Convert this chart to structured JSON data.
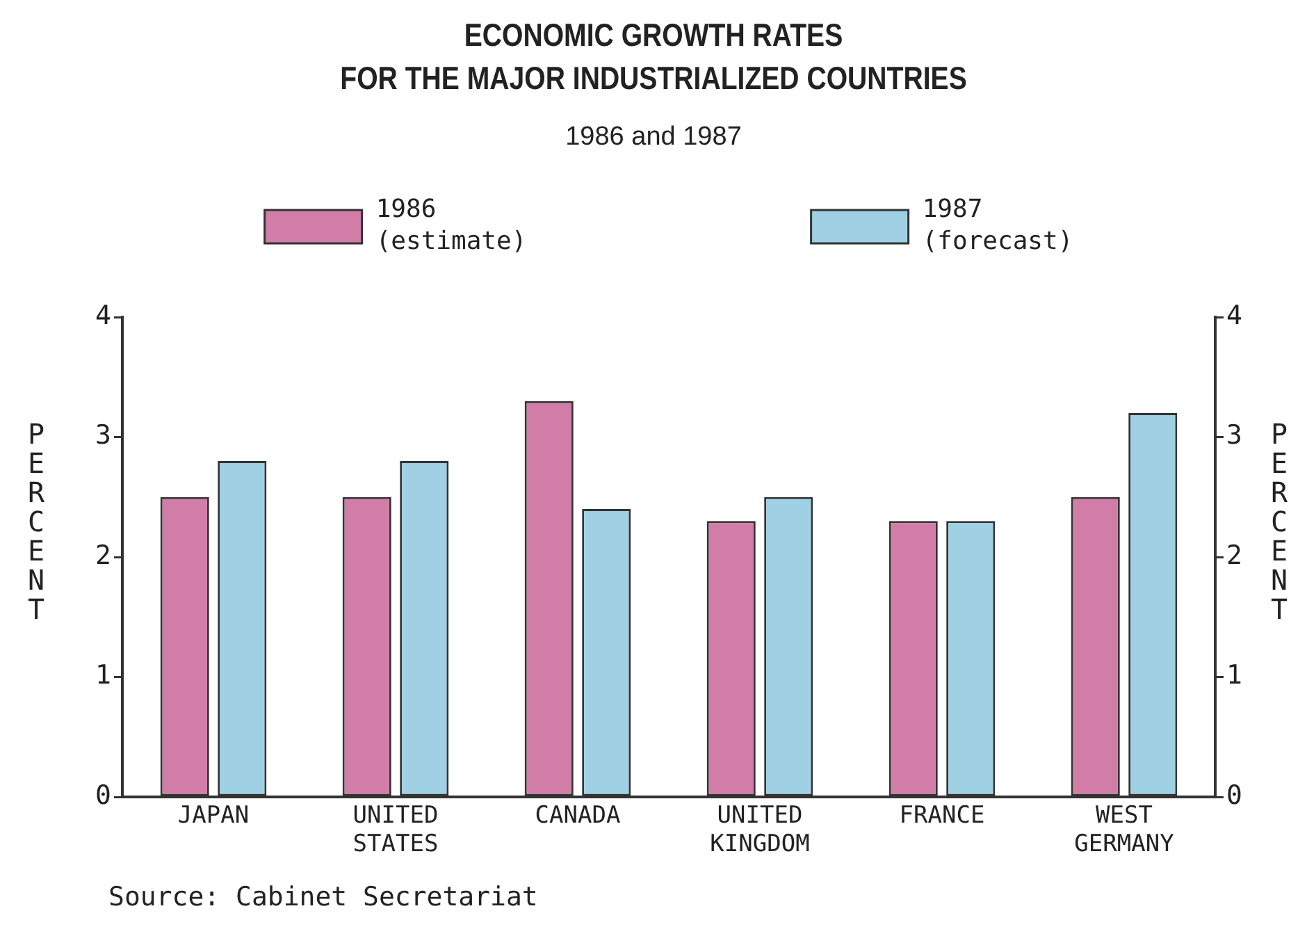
{
  "chart_data": {
    "type": "bar",
    "title": "ECONOMIC GROWTH RATES\nFOR THE MAJOR INDUSTRIALIZED COUNTRIES",
    "subtitle": "1986 and 1987",
    "ylabel": "PERCENT",
    "y2label": "PERCENT",
    "categories": [
      "JAPAN",
      "UNITED STATES",
      "CANADA",
      "UNITED KINGDOM",
      "FRANCE",
      "WEST GERMANY"
    ],
    "series": [
      {
        "name": "1986 (estimate)",
        "color": "#d27ca8",
        "values": [
          2.5,
          2.5,
          3.3,
          2.3,
          2.3,
          2.5
        ]
      },
      {
        "name": "1987 (forecast)",
        "color": "#9fd0e4",
        "values": [
          2.8,
          2.8,
          2.4,
          2.5,
          2.3,
          3.2
        ]
      }
    ],
    "ylim": [
      0,
      4
    ],
    "yticks": [
      0,
      1,
      2,
      3,
      4
    ],
    "y2lim": [
      0,
      4
    ],
    "y2ticks": [
      0,
      1,
      2,
      3,
      4
    ],
    "legend": "top",
    "annotations": [
      "Source: Cabinet Secretariat"
    ]
  }
}
